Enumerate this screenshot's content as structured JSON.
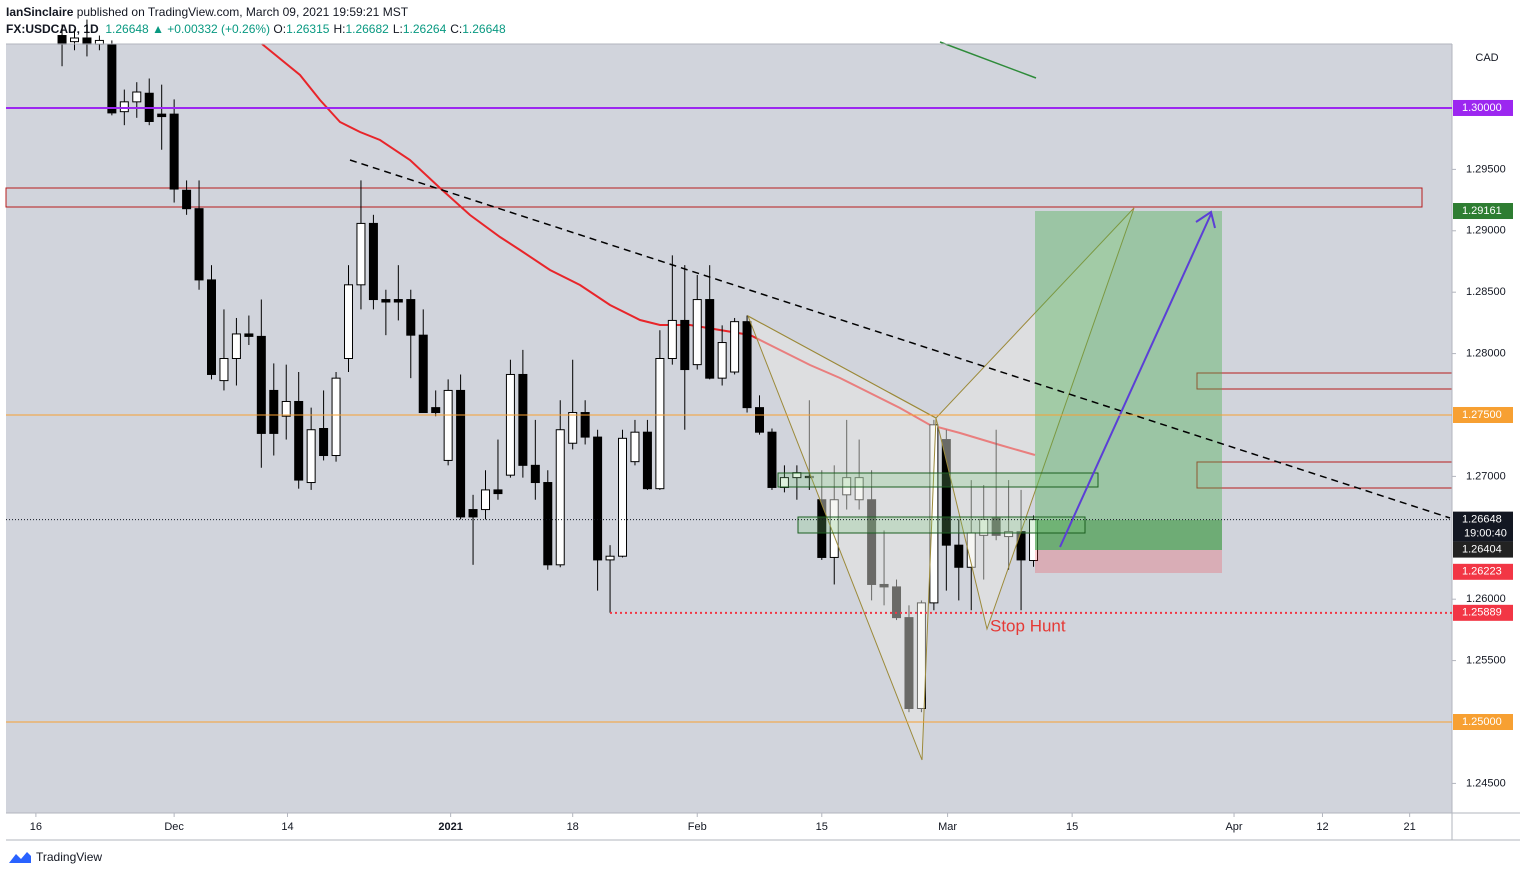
{
  "header": {
    "author": "IanSinclaire",
    "published": " published on TradingView.com, March 09, 2021 19:59:21 MST",
    "symbol": "FX:USDCAD, 1D",
    "price": "1.26648",
    "change": "▲ +0.00332 (+0.26%)",
    "ohlc": [
      {
        "label": "O:",
        "value": "1.26315"
      },
      {
        "label": "H:",
        "value": "1.26682"
      },
      {
        "label": "L:",
        "value": "1.26264"
      },
      {
        "label": "C:",
        "value": "1.26648"
      }
    ]
  },
  "footer": {
    "brand": "TradingView"
  },
  "chart_data": {
    "type": "candlestick",
    "y_unit": "CAD",
    "grid": false,
    "up_color": "#ffffff",
    "down_color": "#000000",
    "border_color": "#000000",
    "xlim": [
      -4.5,
      111.6
    ],
    "ylim": [
      1.24259,
      1.30521
    ],
    "xticks": [
      {
        "value": -2.1,
        "label": "16"
      },
      {
        "value": 9.0,
        "label": "Dec"
      },
      {
        "value": 18.1,
        "label": "14"
      },
      {
        "value": 31.2,
        "label": "2021"
      },
      {
        "value": 41.0,
        "label": "18"
      },
      {
        "value": 51.0,
        "label": "Feb"
      },
      {
        "value": 61.0,
        "label": "15"
      },
      {
        "value": 71.1,
        "label": "Mar"
      },
      {
        "value": 81.1,
        "label": "15"
      },
      {
        "value": 94.1,
        "label": "Apr"
      },
      {
        "value": 101.2,
        "label": "12"
      },
      {
        "value": 108.2,
        "label": "21"
      }
    ],
    "yticks": [
      {
        "value": 1.245,
        "label": "1.24500"
      },
      {
        "value": 1.255,
        "label": "1.25500"
      },
      {
        "value": 1.26,
        "label": "1.26000"
      },
      {
        "value": 1.27,
        "label": "1.27000"
      },
      {
        "value": 1.28,
        "label": "1.28000"
      },
      {
        "value": 1.285,
        "label": "1.28500"
      },
      {
        "value": 1.29,
        "label": "1.29000"
      },
      {
        "value": 1.295,
        "label": "1.29500"
      }
    ],
    "open": [
      1.3059,
      1.3054,
      1.3057,
      1.3052,
      1.3052,
      1.2997,
      1.3005,
      1.3012,
      1.2995,
      1.2995,
      1.2933,
      1.2918,
      1.286,
      1.2778,
      1.2796,
      1.2816,
      1.2814,
      1.277,
      1.2749,
      1.2761,
      1.2695,
      1.2739,
      1.2717,
      1.2796,
      1.2856,
      1.2906,
      1.2844,
      1.2844,
      1.2844,
      1.2815,
      1.2756,
      1.2713,
      1.277,
      1.2673,
      1.2673,
      1.2689,
      1.2701,
      1.2783,
      1.2709,
      1.2695,
      1.2628,
      1.2727,
      1.2752,
      1.2732,
      1.2632,
      1.2635,
      1.2712,
      1.2736,
      1.269,
      1.2796,
      1.2827,
      1.2791,
      1.2844,
      1.278,
      1.2785,
      1.2826,
      1.2756,
      1.2736,
      1.2691,
      1.2699,
      1.2699,
      1.2681,
      1.2634,
      1.2685,
      1.2681,
      1.2681,
      1.2612,
      1.261,
      1.2585,
      1.2511,
      1.2597,
      1.273,
      1.2644,
      1.2626,
      1.2652,
      1.2666,
      1.2651,
      1.2655,
      1.26315
    ],
    "high": [
      1.3068,
      1.3064,
      1.3072,
      1.3059,
      1.3055,
      1.3015,
      1.3021,
      1.3024,
      1.3019,
      1.3007,
      1.2941,
      1.2941,
      1.2872,
      1.2836,
      1.2829,
      1.2831,
      1.2844,
      1.2792,
      1.2791,
      1.2785,
      1.2756,
      1.277,
      1.2785,
      1.2872,
      1.2941,
      1.2913,
      1.2852,
      1.2872,
      1.2852,
      1.2836,
      1.277,
      1.2779,
      1.2783,
      1.2685,
      1.2705,
      1.273,
      1.2795,
      1.2803,
      1.2746,
      1.2705,
      1.2762,
      1.2795,
      1.2762,
      1.2738,
      1.2644,
      1.2738,
      1.2746,
      1.2746,
      1.2819,
      1.288,
      1.2872,
      1.2864,
      1.2872,
      1.2823,
      1.2829,
      1.2831,
      1.2766,
      1.2739,
      1.2709,
      1.2709,
      1.2762,
      1.2705,
      1.2709,
      1.2746,
      1.273,
      1.2705,
      1.2656,
      1.2616,
      1.2595,
      1.2599,
      1.2746,
      1.2738,
      1.2665,
      1.2697,
      1.2693,
      1.2738,
      1.2697,
      1.2689,
      1.26682
    ],
    "low": [
      1.3034,
      1.3047,
      1.3042,
      1.3047,
      1.2994,
      1.2986,
      1.2992,
      1.2986,
      1.2966,
      1.2923,
      1.2913,
      1.2852,
      1.2779,
      1.277,
      1.2774,
      1.2807,
      1.2707,
      1.2717,
      1.273,
      1.269,
      1.2689,
      1.2713,
      1.2712,
      1.2785,
      1.2836,
      1.2836,
      1.2815,
      1.2827,
      1.278,
      1.2752,
      1.2749,
      1.2709,
      1.2665,
      1.2628,
      1.2665,
      1.2681,
      1.2699,
      1.2699,
      1.2681,
      1.2624,
      1.2626,
      1.2722,
      1.2726,
      1.2607,
      1.2589,
      1.2634,
      1.2709,
      1.2689,
      1.2689,
      1.2791,
      1.2738,
      1.2787,
      1.2779,
      1.2774,
      1.2783,
      1.2752,
      1.2734,
      1.2689,
      1.2687,
      1.2681,
      1.2689,
      1.2632,
      1.2612,
      1.2673,
      1.2673,
      1.2599,
      1.2595,
      1.2583,
      1.2508,
      1.2508,
      1.2591,
      1.2607,
      1.2599,
      1.2591,
      1.2616,
      1.2648,
      1.2624,
      1.2591,
      1.26264
    ],
    "close": [
      1.3052,
      1.3057,
      1.3052,
      1.3055,
      1.2996,
      1.3005,
      1.3013,
      1.2989,
      1.2993,
      1.2934,
      1.2918,
      1.286,
      1.2783,
      1.2796,
      1.2816,
      1.2814,
      1.2735,
      1.2735,
      1.2761,
      1.2697,
      1.2738,
      1.2717,
      1.278,
      1.2856,
      1.2906,
      1.2844,
      1.2842,
      1.2842,
      1.2815,
      1.2752,
      1.2752,
      1.277,
      1.2667,
      1.2667,
      1.2689,
      1.2686,
      1.2783,
      1.2709,
      1.2695,
      1.2628,
      1.2738,
      1.2752,
      1.2732,
      1.2632,
      1.2635,
      1.2731,
      1.2736,
      1.269,
      1.2796,
      1.2827,
      1.2787,
      1.2844,
      1.278,
      1.2809,
      1.2826,
      1.2756,
      1.2736,
      1.2691,
      1.2699,
      1.2703,
      1.27,
      1.2634,
      1.2681,
      1.2699,
      1.2699,
      1.2612,
      1.261,
      1.2585,
      1.2511,
      1.2597,
      1.2742,
      1.2644,
      1.2626,
      1.2654,
      1.2665,
      1.2652,
      1.2655,
      1.2632,
      1.26648
    ],
    "countdown": "19:00:40",
    "levels": [
      {
        "value": 1.3,
        "label": "1.30000",
        "color": "#9c27f0",
        "line": "solid"
      },
      {
        "value": 1.29161,
        "label": "1.29161",
        "color": "#2e7d32",
        "line": "none"
      },
      {
        "value": 1.275,
        "label": "1.27500",
        "color": "#f7a032",
        "line": "solid"
      },
      {
        "value": 1.26648,
        "label": "1.26648",
        "color": "#131722",
        "line": "dotted"
      },
      {
        "value": 1.26404,
        "label": "1.26404",
        "color": "#222222",
        "line": "none"
      },
      {
        "value": 1.26223,
        "label": "1.26223",
        "color": "#f23645",
        "line": "none"
      },
      {
        "value": 1.25889,
        "label": "1.25889",
        "color": "#f23645",
        "line": "dotted-partial"
      },
      {
        "value": 1.25,
        "label": "1.25000",
        "color": "#f7a032",
        "line": "solid"
      }
    ],
    "annotation": "Stop Hunt"
  }
}
